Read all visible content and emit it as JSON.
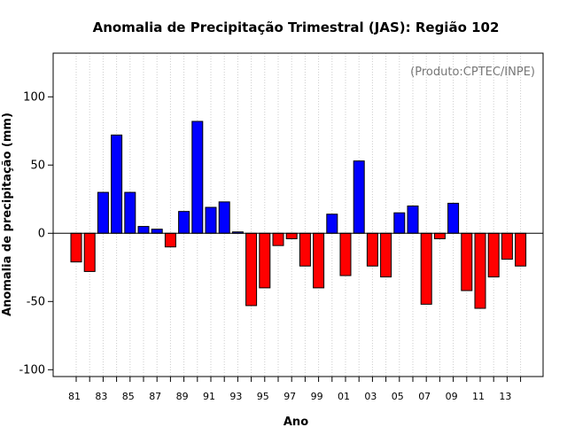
{
  "chart_data": {
    "type": "bar",
    "title": "Anomalia de Precipitação Trimestral (JAS): Região 102",
    "credit": "(Produto:CPTEC/INPE)",
    "xlabel": "Ano",
    "ylabel": "Anomalia de precipitação (mm)",
    "ylim": [
      -105,
      132
    ],
    "yticks": [
      "-100",
      "-50",
      "0",
      "50",
      "100"
    ],
    "ytick_values": [
      -100,
      -50,
      0,
      50,
      100
    ],
    "categories": [
      "81",
      "82",
      "83",
      "84",
      "85",
      "86",
      "87",
      "88",
      "89",
      "90",
      "91",
      "92",
      "93",
      "94",
      "95",
      "96",
      "97",
      "98",
      "99",
      "00",
      "01",
      "02",
      "03",
      "04",
      "05",
      "06",
      "07",
      "08",
      "09",
      "10",
      "11",
      "12",
      "13",
      "14"
    ],
    "xtick_labels": [
      "81",
      "83",
      "85",
      "87",
      "89",
      "91",
      "93",
      "95",
      "97",
      "99",
      "01",
      "03",
      "05",
      "07",
      "09",
      "11",
      "13"
    ],
    "values": [
      -21,
      -28,
      30,
      72,
      30,
      5,
      3,
      -10,
      16,
      82,
      19,
      23,
      1,
      -53,
      -40,
      -9,
      -4,
      -24,
      -40,
      14,
      -31,
      53,
      -24,
      -32,
      15,
      20,
      -52,
      -4,
      22,
      -42,
      -55,
      -32,
      -19,
      -24
    ],
    "grid": true,
    "colors": {
      "positive": "#0000ff",
      "negative": "#ff0000",
      "grid": "#cccccc",
      "credit": "#777777"
    }
  }
}
